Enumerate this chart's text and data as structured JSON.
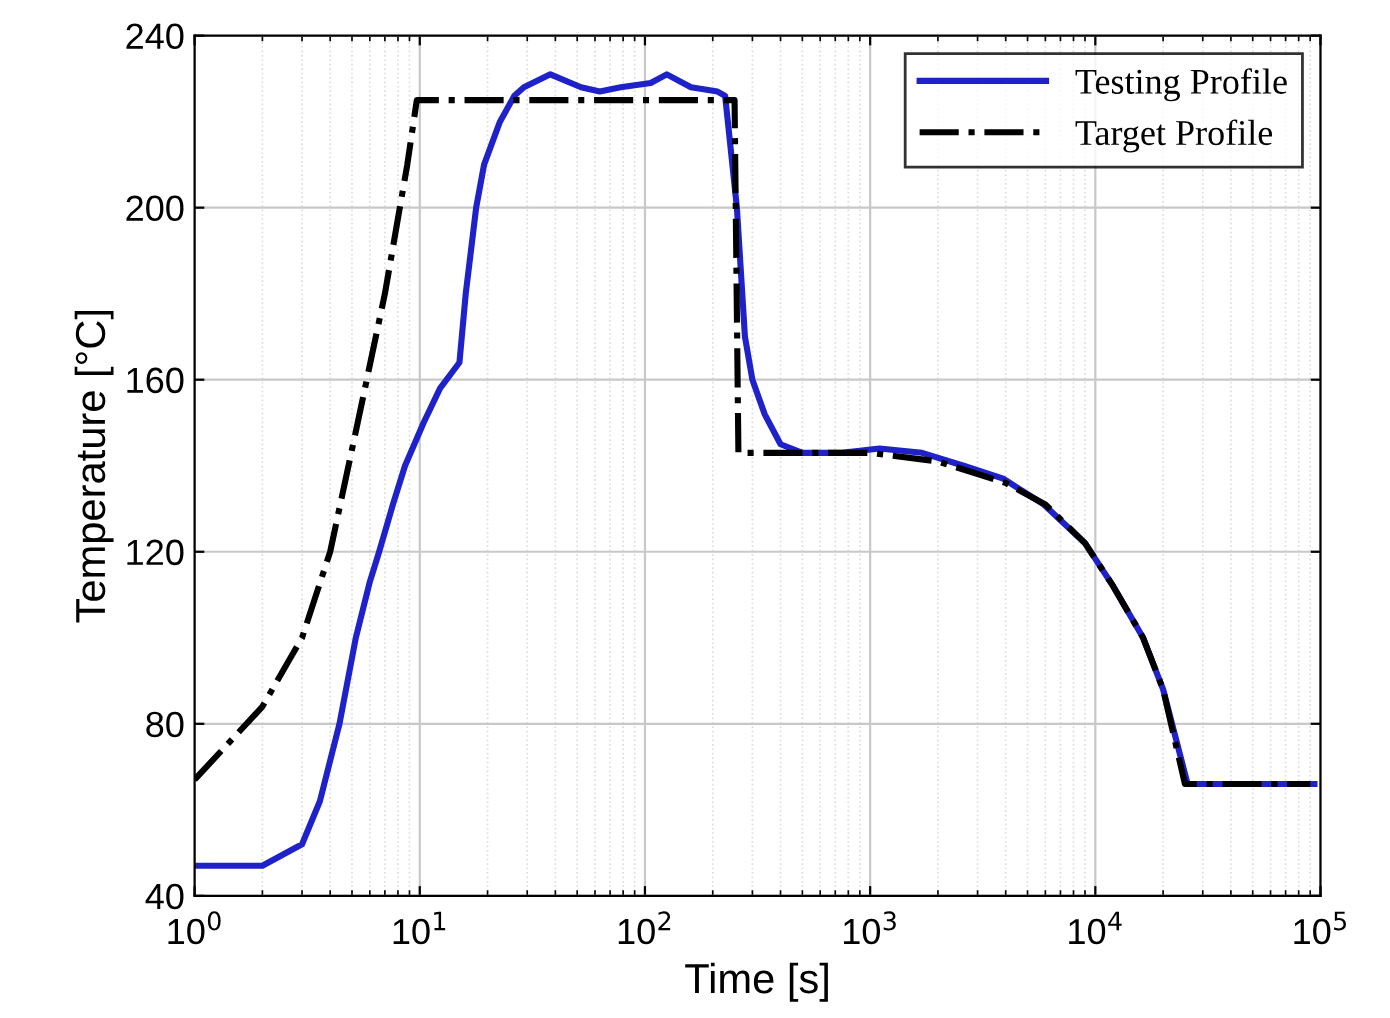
{
  "chart_data": {
    "type": "line",
    "xlabel": "Time [s]",
    "ylabel": "Temperature [°C]",
    "log": "x",
    "grid": true,
    "legend": "top right",
    "marker": "none",
    "xlim": [
      1,
      100000
    ],
    "xticks": [
      {
        "value": 1,
        "label": "10$^{0}$"
      },
      {
        "value": 10,
        "label": "10$^{1}$"
      },
      {
        "value": 100,
        "label": "10$^{2}$"
      },
      {
        "value": 1000,
        "label": "10$^{3}$"
      },
      {
        "value": 10000,
        "label": "10$^{4}$"
      },
      {
        "value": 100000,
        "label": "10$^{5}$"
      }
    ],
    "ylim": [
      40,
      240
    ],
    "yticks": [
      40,
      80,
      120,
      160,
      200,
      240
    ],
    "series": [
      {
        "name": "Testing Profile",
        "color": "#1f22c8",
        "line_style": "solid",
        "x": [
          1,
          2,
          3,
          3.6,
          4.4,
          5.2,
          6,
          6.6,
          7.6,
          8.6,
          10.4,
          12.3,
          15,
          16,
          17.8,
          19.3,
          22.7,
          26.3,
          29,
          38,
          52,
          63,
          78,
          106,
          125,
          160,
          210,
          227,
          256,
          278,
          300,
          340,
          400,
          500,
          750,
          1100,
          1700,
          2600,
          3900,
          5900,
          9000,
          12000,
          16300,
          20000,
          25700,
          94000
        ],
        "values": [
          47,
          47,
          52,
          62,
          80,
          100,
          113,
          120,
          131,
          140,
          150,
          158,
          164,
          180,
          200,
          210,
          220,
          226,
          228,
          231,
          228,
          227,
          228,
          229,
          231,
          228,
          227,
          226,
          200,
          170,
          160,
          152,
          145,
          143,
          143,
          144,
          143,
          140,
          137,
          131,
          122,
          112,
          100,
          88,
          66,
          66
        ]
      },
      {
        "name": "Target Profile",
        "color": "#000000",
        "line_style": "dashdot",
        "x": [
          1,
          2,
          3,
          4,
          5.3,
          7,
          8.8,
          9.7,
          250,
          260,
          600,
          1000,
          2000,
          4000,
          6000,
          9000,
          12000,
          16300,
          20000,
          25000,
          90000
        ],
        "values": [
          67,
          84,
          100,
          120,
          150,
          180,
          210,
          225,
          225,
          143,
          143,
          143,
          141,
          136,
          131,
          122,
          112,
          100,
          88,
          66,
          66
        ]
      }
    ]
  }
}
